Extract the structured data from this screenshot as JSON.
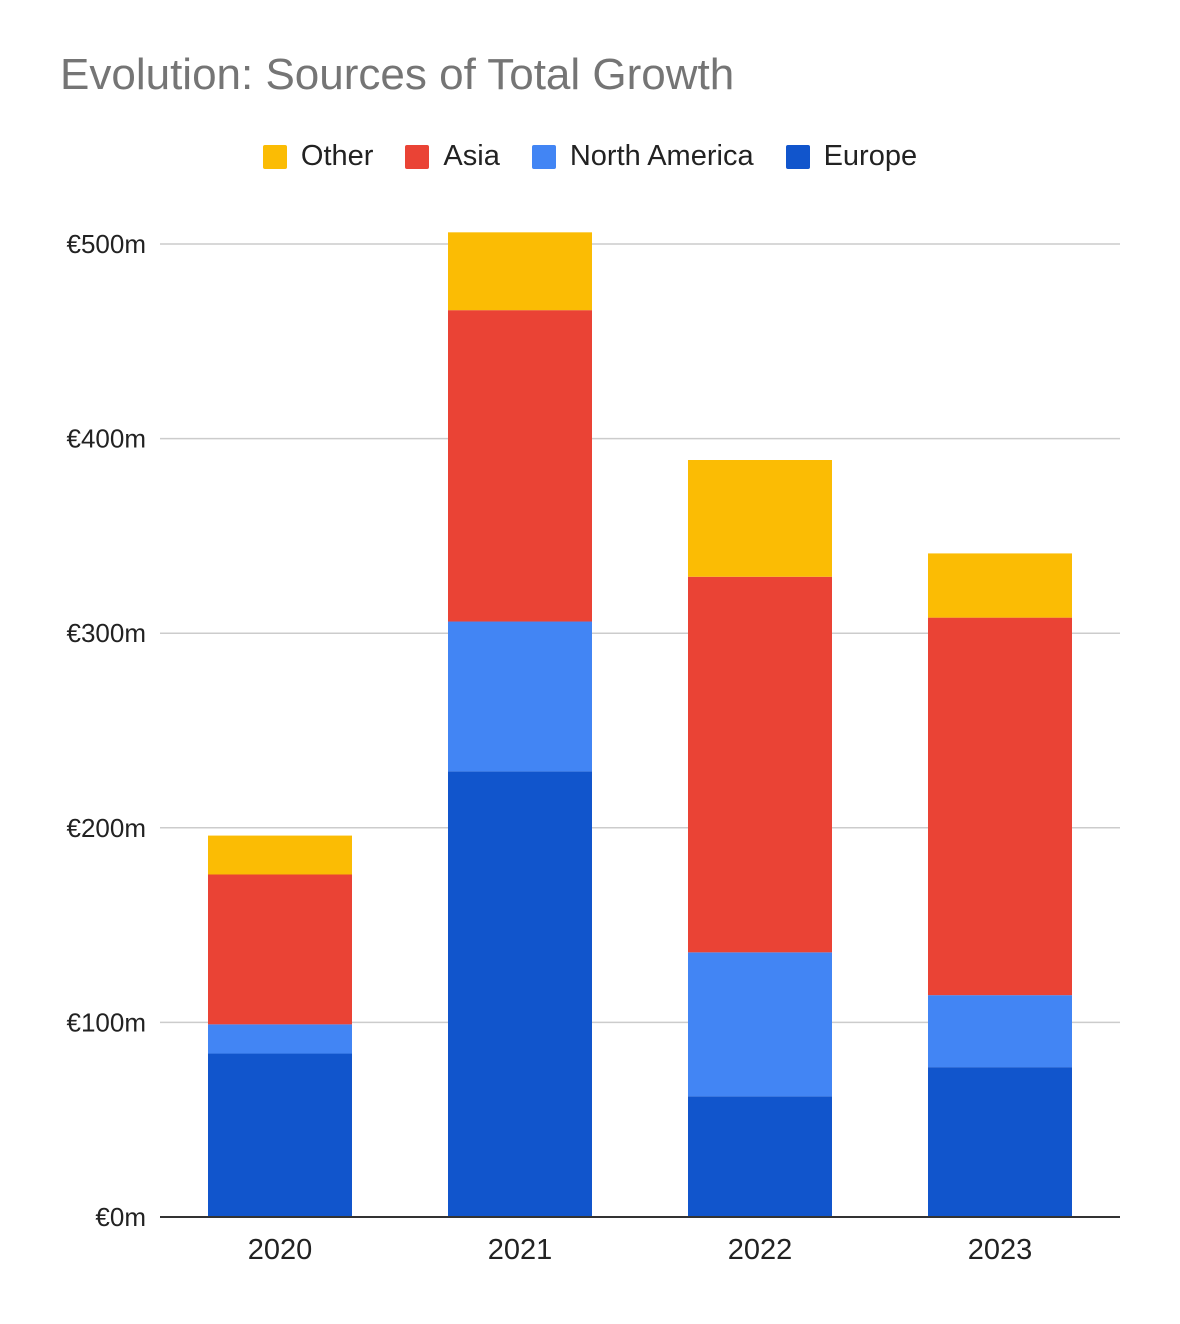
{
  "chart_data": {
    "type": "bar",
    "stacked": true,
    "title": "Evolution: Sources of Total Growth",
    "categories": [
      "2020",
      "2021",
      "2022",
      "2023"
    ],
    "series": [
      {
        "name": "Europe",
        "color": "#1155cc",
        "values": [
          84,
          229,
          62,
          77
        ]
      },
      {
        "name": "North America",
        "color": "#4285f4",
        "values": [
          15,
          77,
          74,
          37
        ]
      },
      {
        "name": "Asia",
        "color": "#ea4335",
        "values": [
          77,
          160,
          193,
          194
        ]
      },
      {
        "name": "Other",
        "color": "#fbbc04",
        "values": [
          20,
          40,
          60,
          33
        ]
      }
    ],
    "legend_order": [
      "Other",
      "Asia",
      "North America",
      "Europe"
    ],
    "ylim": [
      0,
      500
    ],
    "yticks": [
      0,
      100,
      200,
      300,
      400,
      500
    ],
    "ytick_labels": [
      "€0m",
      "€100m",
      "€200m",
      "€300m",
      "€400m",
      "€500m"
    ],
    "grid": true,
    "legend_position": "top-center"
  }
}
